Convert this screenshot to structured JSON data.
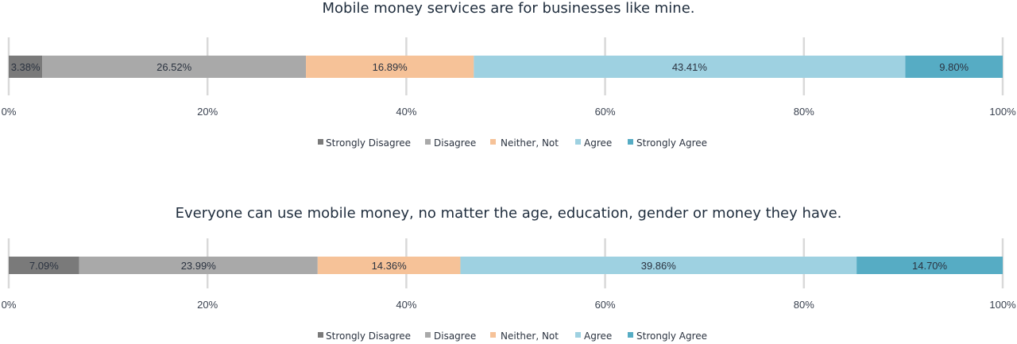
{
  "chart_data": [
    {
      "type": "bar",
      "orientation": "horizontal-stacked",
      "title": "Mobile money services are for businesses  like mine.",
      "categories": [
        ""
      ],
      "series": [
        {
          "name": "Strongly Disagree",
          "values": [
            3.38
          ],
          "label": "3.38%",
          "color": "#7a7a7a"
        },
        {
          "name": "Disagree",
          "values": [
            26.52
          ],
          "label": "26.52%",
          "color": "#a9a9a9"
        },
        {
          "name": "Neither, Not",
          "values": [
            16.89
          ],
          "label": "16.89%",
          "color": "#f6c298"
        },
        {
          "name": "Agree",
          "values": [
            43.41
          ],
          "label": "43.41%",
          "color": "#9ed1e1"
        },
        {
          "name": "Strongly Agree",
          "values": [
            9.8
          ],
          "label": "9.80%",
          "color": "#56acc4"
        }
      ],
      "xlim": [
        0,
        100
      ],
      "xticks": [
        "0%",
        "20%",
        "40%",
        "60%",
        "80%",
        "100%"
      ],
      "grid": true,
      "legend": "bottom"
    },
    {
      "type": "bar",
      "orientation": "horizontal-stacked",
      "title": "Everyone can use mobile money, no matter the age, education, gender or money they have.",
      "categories": [
        ""
      ],
      "series": [
        {
          "name": "Strongly Disagree",
          "values": [
            7.09
          ],
          "label": "7.09%",
          "color": "#7a7a7a"
        },
        {
          "name": "Disagree",
          "values": [
            23.99
          ],
          "label": "23.99%",
          "color": "#a9a9a9"
        },
        {
          "name": "Neither, Not",
          "values": [
            14.36
          ],
          "label": "14.36%",
          "color": "#f6c298"
        },
        {
          "name": "Agree",
          "values": [
            39.86
          ],
          "label": "39.86%",
          "color": "#9ed1e1"
        },
        {
          "name": "Strongly Agree",
          "values": [
            14.7
          ],
          "label": "14.70%",
          "color": "#56acc4"
        }
      ],
      "xlim": [
        0,
        100
      ],
      "xticks": [
        "0%",
        "20%",
        "40%",
        "60%",
        "80%",
        "100%"
      ],
      "grid": true,
      "legend": "bottom"
    }
  ]
}
